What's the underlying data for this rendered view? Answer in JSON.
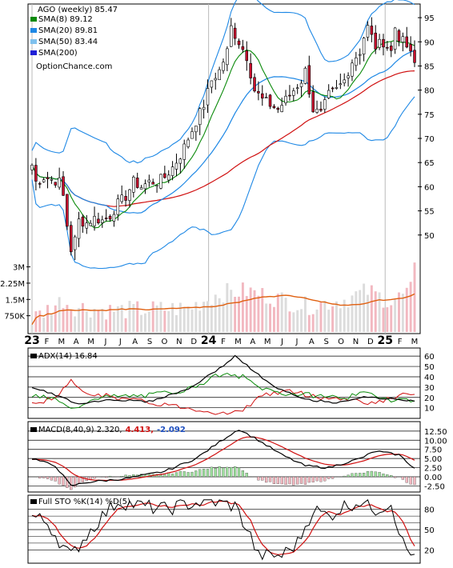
{
  "header": {
    "title": "AGO (weekly) 85.47",
    "legend": [
      {
        "label": "SMA(8) 89.12",
        "color": "#0a8a0a"
      },
      {
        "label": "SMA(20) 89.81",
        "color": "#1e88e5"
      },
      {
        "label": "SMA(50) 83.44",
        "color": "#7fc1ee"
      },
      {
        "label": "SMA(200)",
        "color": "#1f1fd6"
      }
    ],
    "watermark": "OptionChance.com"
  },
  "colors": {
    "up": "#ffffff",
    "down": "#c8102e",
    "wick": "#000000",
    "sma8": "#0a8a0a",
    "sma20": "#1e88e5",
    "sma50": "#7fc1ee",
    "sma200": "#d01010",
    "bb": "#1e88e5",
    "bb_tail": "#e6e600",
    "vol_up": "#dcdcdc",
    "vol_down": "#f2b8c0",
    "vol_avg": "#e06010",
    "adx": "#000000",
    "di_plus": "#0a8a0a",
    "di_minus": "#d01010",
    "macd": "#000000",
    "signal": "#d01010",
    "hist_up": "#9ee09e",
    "hist_down": "#f2b8c0",
    "sto_k": "#000000",
    "sto_d": "#d01010"
  },
  "panels": {
    "adx": {
      "label": "ADX(14) 16.84"
    },
    "macd": {
      "label": "MACD(8,40,9) 2.320,",
      "v1": "4.413,",
      "v2": "-2.092"
    },
    "sto": {
      "label": "Full STO %K(14) %D(5)"
    }
  },
  "chart_data": {
    "type": "candlestick",
    "x_tick_labels": [
      "23",
      "F",
      "M",
      "A",
      "M",
      "J",
      "J",
      "A",
      "S",
      "O",
      "N",
      "D",
      "24",
      "F",
      "M",
      "A",
      "M",
      "J",
      "J",
      "A",
      "S",
      "O",
      "N",
      "D",
      "25",
      "F",
      "M"
    ],
    "price_axis": {
      "ticks": [
        50,
        55,
        60,
        65,
        70,
        75,
        80,
        85,
        90,
        95
      ],
      "ylim": [
        44,
        97
      ]
    },
    "volume_axis": {
      "ticks": [
        "750K",
        "1.5M",
        "2.25M",
        "3M"
      ]
    },
    "adx_axis": {
      "ticks": [
        10,
        20,
        30,
        40,
        50,
        60
      ]
    },
    "macd_axis": {
      "ticks": [
        "-2.50",
        "0.00",
        "2.50",
        "5.00",
        "7.50",
        "10.00",
        "12.50"
      ]
    },
    "sto_axis": {
      "ticks": [
        20,
        50,
        80
      ]
    },
    "close_anchors": [
      [
        0,
        64.5
      ],
      [
        1,
        61
      ],
      [
        3,
        62
      ],
      [
        5,
        61.5
      ],
      [
        7,
        61
      ],
      [
        8,
        58
      ],
      [
        9,
        52
      ],
      [
        10,
        47
      ],
      [
        11,
        49
      ],
      [
        12,
        53
      ],
      [
        14,
        52.5
      ],
      [
        16,
        53.5
      ],
      [
        18,
        53
      ],
      [
        20,
        54
      ],
      [
        22,
        56.5
      ],
      [
        24,
        58
      ],
      [
        26,
        61
      ],
      [
        28,
        60
      ],
      [
        30,
        61
      ],
      [
        32,
        61
      ],
      [
        34,
        62
      ],
      [
        36,
        64
      ],
      [
        38,
        66.5
      ],
      [
        40,
        70
      ],
      [
        42,
        73.5
      ],
      [
        44,
        77
      ],
      [
        46,
        82
      ],
      [
        48,
        84
      ],
      [
        50,
        88
      ],
      [
        51,
        93
      ],
      [
        53,
        90
      ],
      [
        55,
        87
      ],
      [
        57,
        80
      ],
      [
        59,
        78
      ],
      [
        61,
        77
      ],
      [
        63,
        76
      ],
      [
        65,
        78
      ],
      [
        67,
        80
      ],
      [
        69,
        82
      ],
      [
        70,
        84
      ],
      [
        72,
        76
      ],
      [
        74,
        75
      ],
      [
        76,
        79
      ],
      [
        78,
        80
      ],
      [
        80,
        82
      ],
      [
        82,
        86
      ],
      [
        84,
        88
      ],
      [
        85,
        91
      ],
      [
        86,
        93
      ],
      [
        88,
        89
      ],
      [
        90,
        90
      ],
      [
        92,
        88
      ],
      [
        93,
        93
      ],
      [
        94,
        91
      ],
      [
        96,
        89
      ],
      [
        98,
        85.5
      ]
    ],
    "volume_profile": [
      [
        0,
        0.5
      ],
      [
        8,
        1.4
      ],
      [
        10,
        1.1
      ],
      [
        20,
        0.9
      ],
      [
        40,
        1.0
      ],
      [
        48,
        1.7
      ],
      [
        55,
        1.8
      ],
      [
        62,
        1.5
      ],
      [
        70,
        1.1
      ],
      [
        80,
        1.4
      ],
      [
        86,
        1.8
      ],
      [
        92,
        1.3
      ],
      [
        98,
        1.9
      ]
    ],
    "volume_spike": {
      "week": 98,
      "value": 3.2
    }
  }
}
